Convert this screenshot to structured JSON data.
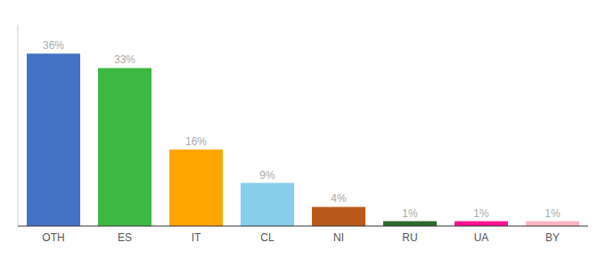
{
  "chart_data": {
    "type": "bar",
    "categories": [
      "OTH",
      "ES",
      "IT",
      "CL",
      "NI",
      "RU",
      "UA",
      "BY"
    ],
    "values": [
      36,
      33,
      16,
      9,
      4,
      1,
      1,
      1
    ],
    "value_labels": [
      "36%",
      "33%",
      "16%",
      "9%",
      "4%",
      "1%",
      "1%",
      "1%"
    ],
    "colors": [
      "#4472C4",
      "#3CB843",
      "#FFA500",
      "#87CEEB",
      "#B8591A",
      "#2D6A2D",
      "#FF1493",
      "#FFB6C1"
    ],
    "ylim": [
      0,
      42
    ],
    "grid": false,
    "data_labels": true,
    "tick_labels": "x"
  }
}
